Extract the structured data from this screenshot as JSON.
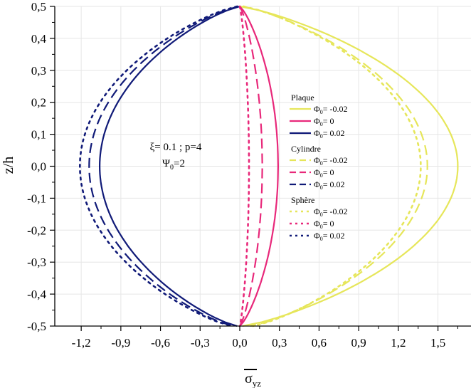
{
  "chart_data": {
    "type": "line",
    "xlabel": "σ",
    "xlabel_sub": "yz",
    "ylabel": "z/h",
    "xlim": [
      -1.4,
      1.75
    ],
    "ylim": [
      -0.5,
      0.5
    ],
    "xticks": [
      "-1,2",
      "-0,9",
      "-0,6",
      "-0,3",
      "0,0",
      "0,3",
      "0,6",
      "0,9",
      "1,2",
      "1,5"
    ],
    "xtick_values": [
      -1.2,
      -0.9,
      -0.6,
      -0.3,
      0.0,
      0.3,
      0.6,
      0.9,
      1.2,
      1.5
    ],
    "yticks": [
      "0,5",
      "0,4",
      "0,3",
      "0,2",
      "0,1",
      "0,0",
      "-0,1",
      "-0,2",
      "-0,3",
      "-0,4",
      "-0,5"
    ],
    "ytick_values": [
      0.5,
      0.4,
      0.3,
      0.2,
      0.1,
      0.0,
      -0.1,
      -0.2,
      -0.3,
      -0.4,
      -0.5
    ],
    "annotation": {
      "line1": "ξ= 0.1 ; p=4",
      "line2_main": "Ψ",
      "line2_sub": "0",
      "line2_tail": "=2"
    },
    "legend_groups": [
      {
        "title": "Plaque",
        "style": "solid"
      },
      {
        "title": "Cylindre",
        "style": "dash"
      },
      {
        "title": "Sphère",
        "style": "dot"
      }
    ],
    "phi_symbol": "Φ",
    "phi_sub": "0",
    "phi_labels": [
      "= -0.02",
      "= 0",
      "= 0.02"
    ],
    "colors": {
      "phi_neg": "#e6e65a",
      "phi_zero": "#e8287a",
      "phi_pos": "#101a78"
    },
    "series": [
      {
        "name": "Plaque Φ0=-0.02",
        "group": "Plaque",
        "phi": -0.02,
        "peak": 1.65,
        "xtop": 0.0,
        "xbot": 0.02,
        "color": "#e6e65a"
      },
      {
        "name": "Plaque Φ0=0",
        "group": "Plaque",
        "phi": 0,
        "peak": 0.29,
        "xtop": 0.0,
        "xbot": 0.0,
        "color": "#e8287a"
      },
      {
        "name": "Plaque Φ0=0.02",
        "group": "Plaque",
        "phi": 0.02,
        "peak": -1.06,
        "xtop": 0.0,
        "xbot": -0.02,
        "color": "#101a78"
      },
      {
        "name": "Cylindre Φ0=-0.02",
        "group": "Cylindre",
        "phi": -0.02,
        "peak": 1.42,
        "xtop": 0.02,
        "xbot": 0.08,
        "color": "#e6e65a"
      },
      {
        "name": "Cylindre Φ0=0",
        "group": "Cylindre",
        "phi": 0,
        "peak": 0.17,
        "xtop": 0.0,
        "xbot": 0.0,
        "color": "#e8287a"
      },
      {
        "name": "Cylindre Φ0=0.02",
        "group": "Cylindre",
        "phi": 0.02,
        "peak": -1.14,
        "xtop": -0.01,
        "xbot": -0.05,
        "color": "#101a78"
      },
      {
        "name": "Sphère Φ0=-0.02",
        "group": "Sphère",
        "phi": -0.02,
        "peak": 1.37,
        "xtop": 0.03,
        "xbot": 0.1,
        "color": "#e6e65a"
      },
      {
        "name": "Sphère Φ0=0",
        "group": "Sphère",
        "phi": 0,
        "peak": 0.07,
        "xtop": 0.0,
        "xbot": 0.0,
        "color": "#e8287a"
      },
      {
        "name": "Sphère Φ0=0.02",
        "group": "Sphère",
        "phi": 0.02,
        "peak": -1.21,
        "xtop": -0.02,
        "xbot": -0.06,
        "color": "#101a78"
      }
    ]
  }
}
